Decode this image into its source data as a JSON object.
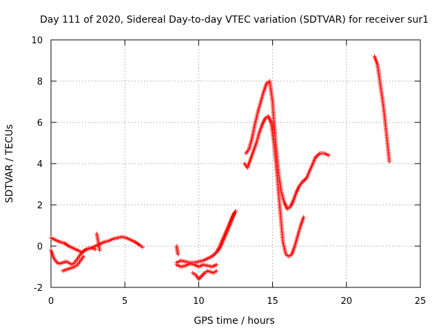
{
  "chart_data": {
    "type": "scatter",
    "title": "Day 111 of 2020, Sidereal Day-to-day VTEC variation (SDTVAR) for receiver sur1",
    "xlabel": "GPS time / hours",
    "ylabel": "SDTVAR / TECUs",
    "xlim": [
      0,
      25
    ],
    "ylim": [
      -2,
      10
    ],
    "xticks": [
      0,
      5,
      10,
      15,
      20,
      25
    ],
    "yticks": [
      -2,
      0,
      2,
      4,
      6,
      8,
      10
    ],
    "xtick_labels": [
      "0",
      "5",
      "10",
      "15",
      "20",
      "25"
    ],
    "ytick_labels": [
      "-2",
      "0",
      "2",
      "4",
      "6",
      "8",
      "10"
    ],
    "grid": true,
    "marker": "+",
    "color": "#ff0000",
    "series": [
      {
        "name": "SDTVAR",
        "segments": [
          {
            "x": [
              0.0,
              0.3,
              0.6,
              0.9,
              1.2,
              1.5,
              1.8,
              2.1,
              2.4,
              2.7,
              3.0,
              3.3,
              3.6,
              3.9,
              4.2,
              4.5,
              4.8,
              5.1,
              5.4,
              5.7,
              6.0,
              6.2
            ],
            "y": [
              0.4,
              0.3,
              0.2,
              0.15,
              0.0,
              -0.1,
              -0.2,
              -0.3,
              -0.15,
              -0.1,
              0.0,
              0.1,
              0.2,
              0.25,
              0.35,
              0.4,
              0.45,
              0.4,
              0.3,
              0.2,
              0.05,
              -0.05
            ]
          },
          {
            "x": [
              0.0,
              0.2,
              0.4,
              0.6,
              0.8,
              1.0,
              1.2,
              1.4,
              1.6,
              1.8,
              2.0,
              2.2,
              2.4,
              2.6,
              2.8,
              3.0
            ],
            "y": [
              -0.2,
              -0.6,
              -0.8,
              -0.85,
              -0.8,
              -0.75,
              -0.8,
              -0.9,
              -0.8,
              -0.6,
              -0.4,
              -0.25,
              -0.15,
              -0.1,
              -0.1,
              -0.15
            ]
          },
          {
            "x": [
              0.8,
              1.0,
              1.2,
              1.4,
              1.6,
              1.8,
              2.0,
              2.2
            ],
            "y": [
              -1.2,
              -1.15,
              -1.1,
              -1.05,
              -1.0,
              -0.9,
              -0.7,
              -0.5
            ]
          },
          {
            "x": [
              3.1,
              3.3
            ],
            "y": [
              0.6,
              -0.2
            ]
          },
          {
            "x": [
              8.5,
              8.8,
              9.1,
              9.4,
              9.7,
              10.0,
              10.3,
              10.6,
              10.9,
              11.2
            ],
            "y": [
              -0.9,
              -1.0,
              -0.95,
              -0.85,
              -0.9,
              -1.0,
              -0.9,
              -0.95,
              -1.0,
              -0.9
            ]
          },
          {
            "x": [
              8.5,
              8.8,
              9.1,
              9.4,
              9.7,
              10.0,
              10.3,
              10.6,
              10.9,
              11.2,
              11.5,
              11.8,
              12.1,
              12.4
            ],
            "y": [
              -0.8,
              -0.7,
              -0.75,
              -0.8,
              -0.8,
              -0.75,
              -0.7,
              -0.6,
              -0.5,
              -0.3,
              0.0,
              0.5,
              1.0,
              1.6
            ]
          },
          {
            "x": [
              9.6,
              9.8,
              10.0,
              10.2,
              10.4,
              10.6,
              10.8,
              11.0,
              11.2
            ],
            "y": [
              -1.3,
              -1.4,
              -1.6,
              -1.45,
              -1.3,
              -1.2,
              -1.25,
              -1.3,
              -1.2
            ]
          },
          {
            "x": [
              11.3,
              11.6,
              11.9,
              12.2,
              12.5
            ],
            "y": [
              -0.2,
              0.3,
              0.8,
              1.3,
              1.7
            ]
          },
          {
            "x": [
              8.5,
              8.6
            ],
            "y": [
              0.0,
              -0.4
            ]
          },
          {
            "x": [
              13.1,
              13.3,
              13.5,
              13.7,
              13.9,
              14.1,
              14.3,
              14.5,
              14.7,
              14.9,
              15.1,
              15.3,
              15.5,
              15.7,
              15.9,
              16.1,
              16.3,
              16.5,
              16.7,
              16.9,
              17.1
            ],
            "y": [
              4.0,
              3.8,
              4.2,
              4.6,
              5.0,
              5.5,
              5.9,
              6.2,
              6.3,
              6.0,
              5.0,
              3.5,
              1.8,
              0.2,
              -0.4,
              -0.5,
              -0.4,
              0.0,
              0.5,
              1.0,
              1.4
            ]
          },
          {
            "x": [
              13.2,
              13.4,
              13.6,
              13.8,
              14.0,
              14.2,
              14.4,
              14.6,
              14.8,
              15.0,
              15.2,
              15.4,
              15.6,
              15.8,
              16.0,
              16.2,
              16.4,
              16.6,
              16.8,
              17.0,
              17.3,
              17.6,
              17.9,
              18.2,
              18.5,
              18.8
            ],
            "y": [
              4.5,
              4.7,
              5.2,
              5.9,
              6.5,
              7.0,
              7.5,
              7.9,
              8.0,
              7.0,
              5.0,
              3.5,
              2.6,
              2.1,
              1.8,
              1.9,
              2.2,
              2.6,
              2.9,
              3.1,
              3.3,
              3.8,
              4.3,
              4.5,
              4.5,
              4.4
            ]
          },
          {
            "x": [
              21.9,
              22.1,
              22.3,
              22.5,
              22.7,
              22.9
            ],
            "y": [
              9.2,
              8.8,
              7.8,
              6.8,
              5.5,
              4.1
            ]
          }
        ]
      }
    ]
  }
}
